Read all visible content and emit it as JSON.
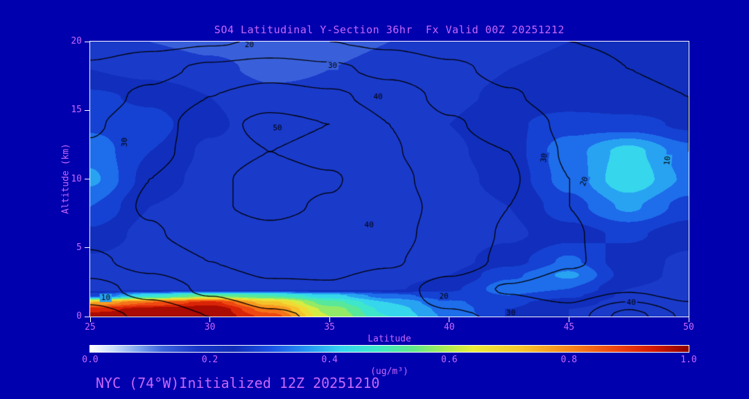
{
  "page": {
    "background": "#0000ae",
    "text_color": "#c868fa",
    "frame_color": "#ffffff",
    "contour_color": "#000000"
  },
  "chart_data": {
    "type": "heatmap",
    "title": "SO4 Latitudinal Y-Section 36hr  Fx Valid 00Z 20251212",
    "xlabel": "Latitude",
    "ylabel": "Altitude (km)",
    "footer": "NYC (74°W)Initialized 12Z 20251210",
    "x_range": [
      25,
      50
    ],
    "y_range": [
      0,
      20
    ],
    "x_ticks": [
      25,
      30,
      35,
      40,
      45,
      50
    ],
    "x_tick_labels": [
      "25",
      "30",
      "35",
      "40",
      "45",
      "50"
    ],
    "y_ticks": [
      0,
      5,
      10,
      15,
      20
    ],
    "y_tick_labels": [
      "0",
      "5",
      "10",
      "15",
      "20"
    ],
    "grid": false,
    "fill_field": {
      "name": "SO4 concentration",
      "units": "ug/m3",
      "lats": [
        25,
        27.5,
        30,
        32.5,
        35,
        37.5,
        40,
        42.5,
        45,
        47.5,
        50
      ],
      "alts": [
        20,
        18,
        16,
        14,
        12,
        10,
        8,
        6,
        4,
        3,
        2,
        1.5,
        1,
        0.5,
        0
      ],
      "values": [
        [
          0.16,
          0.15,
          0.14,
          0.13,
          0.14,
          0.15,
          0.17,
          0.19,
          0.2,
          0.21,
          0.21
        ],
        [
          0.2,
          0.18,
          0.16,
          0.14,
          0.15,
          0.16,
          0.18,
          0.2,
          0.21,
          0.21,
          0.21
        ],
        [
          0.26,
          0.24,
          0.2,
          0.16,
          0.16,
          0.17,
          0.19,
          0.21,
          0.21,
          0.2,
          0.2
        ],
        [
          0.29,
          0.27,
          0.21,
          0.17,
          0.17,
          0.18,
          0.2,
          0.24,
          0.28,
          0.27,
          0.24
        ],
        [
          0.33,
          0.25,
          0.19,
          0.17,
          0.17,
          0.17,
          0.19,
          0.23,
          0.33,
          0.42,
          0.32
        ],
        [
          0.36,
          0.23,
          0.18,
          0.16,
          0.16,
          0.16,
          0.18,
          0.22,
          0.32,
          0.44,
          0.34
        ],
        [
          0.3,
          0.2,
          0.17,
          0.16,
          0.16,
          0.16,
          0.17,
          0.2,
          0.28,
          0.36,
          0.28
        ],
        [
          0.24,
          0.18,
          0.16,
          0.16,
          0.16,
          0.16,
          0.17,
          0.19,
          0.23,
          0.26,
          0.22
        ],
        [
          0.19,
          0.17,
          0.16,
          0.16,
          0.16,
          0.17,
          0.18,
          0.23,
          0.31,
          0.22,
          0.19
        ],
        [
          0.18,
          0.16,
          0.16,
          0.16,
          0.16,
          0.17,
          0.2,
          0.29,
          0.36,
          0.23,
          0.18
        ],
        [
          0.17,
          0.16,
          0.16,
          0.16,
          0.17,
          0.19,
          0.24,
          0.33,
          0.3,
          0.2,
          0.17
        ],
        [
          0.28,
          0.45,
          0.55,
          0.5,
          0.42,
          0.32,
          0.27,
          0.3,
          0.26,
          0.19,
          0.16
        ],
        [
          0.75,
          0.85,
          0.92,
          0.72,
          0.52,
          0.4,
          0.31,
          0.26,
          0.22,
          0.18,
          0.17
        ],
        [
          0.92,
          0.98,
          1.0,
          0.82,
          0.58,
          0.43,
          0.33,
          0.25,
          0.2,
          0.17,
          0.16
        ],
        [
          1.0,
          1.0,
          1.0,
          0.88,
          0.6,
          0.45,
          0.34,
          0.25,
          0.2,
          0.17,
          0.16
        ]
      ]
    },
    "contour_field": {
      "name": "overlay contours",
      "levels": [
        10,
        20,
        30,
        40,
        50
      ],
      "lats": [
        25,
        27.5,
        30,
        32.5,
        35,
        37.5,
        40,
        42.5,
        45,
        47.5,
        50
      ],
      "alts": [
        20,
        18,
        16,
        14,
        12,
        10,
        8,
        6,
        4,
        2,
        0
      ],
      "values": [
        [
          14,
          17,
          19,
          21,
          20,
          18,
          15,
          12,
          10,
          9,
          8
        ],
        [
          22,
          27,
          32,
          35,
          32,
          27,
          22,
          17,
          13,
          10,
          9
        ],
        [
          26,
          32,
          40,
          45,
          42,
          36,
          27,
          21,
          15,
          11,
          10
        ],
        [
          29,
          35,
          46,
          53,
          50,
          40,
          31,
          26,
          18,
          13,
          10
        ],
        [
          31,
          37,
          45,
          50,
          47,
          41,
          33,
          30,
          19,
          13,
          10
        ],
        [
          33,
          40,
          48,
          54,
          51,
          43,
          35,
          31,
          20,
          14,
          11
        ],
        [
          34,
          41,
          49,
          52,
          49,
          44,
          37,
          30,
          20,
          14,
          11
        ],
        [
          33,
          39,
          45,
          48,
          46,
          43,
          36,
          29,
          21,
          15,
          11
        ],
        [
          28,
          34,
          40,
          44,
          43,
          41,
          35,
          28,
          21,
          16,
          12
        ],
        [
          16,
          24,
          32,
          38,
          39,
          34,
          26,
          19,
          15,
          19,
          14
        ],
        [
          6,
          12,
          20,
          28,
          32,
          33,
          31,
          29,
          25,
          44,
          28
        ]
      ]
    },
    "contour_labels": [
      {
        "text": "20",
        "fx": 0.266,
        "fy": 0.012,
        "rot": 0
      },
      {
        "text": "30",
        "fx": 0.405,
        "fy": 0.088,
        "rot": 0
      },
      {
        "text": "40",
        "fx": 0.481,
        "fy": 0.201,
        "rot": 0
      },
      {
        "text": "50",
        "fx": 0.313,
        "fy": 0.315,
        "rot": 0
      },
      {
        "text": "30",
        "fx": 0.058,
        "fy": 0.366,
        "rot": -90
      },
      {
        "text": "40",
        "fx": 0.466,
        "fy": 0.667,
        "rot": 0
      },
      {
        "text": "30",
        "fx": 0.759,
        "fy": 0.423,
        "rot": -80
      },
      {
        "text": "20",
        "fx": 0.826,
        "fy": 0.509,
        "rot": -70
      },
      {
        "text": "10",
        "fx": 0.965,
        "fy": 0.433,
        "rot": -85
      },
      {
        "text": "20",
        "fx": 0.591,
        "fy": 0.927,
        "rot": 0
      },
      {
        "text": "10",
        "fx": 0.026,
        "fy": 0.932,
        "rot": 0
      },
      {
        "text": "40",
        "fx": 0.904,
        "fy": 0.95,
        "rot": 0
      },
      {
        "text": "30",
        "fx": 0.703,
        "fy": 0.987,
        "rot": 0
      }
    ],
    "colorbar": {
      "label": "(ug/m³)",
      "min": 0.0,
      "max": 1.0,
      "tick_values": [
        0.0,
        0.2,
        0.4,
        0.6,
        0.8,
        1.0
      ],
      "tick_labels": [
        "0.0",
        "0.2",
        "0.4",
        "0.6",
        "0.8",
        "1.0"
      ],
      "stops": [
        {
          "v": 0.0,
          "c": "#ffffff"
        },
        {
          "v": 0.04,
          "c": "#c8dcf8"
        },
        {
          "v": 0.08,
          "c": "#7ea6ee"
        },
        {
          "v": 0.12,
          "c": "#3c64dc"
        },
        {
          "v": 0.18,
          "c": "#1736c8"
        },
        {
          "v": 0.24,
          "c": "#0f2cb8"
        },
        {
          "v": 0.3,
          "c": "#1a52e6"
        },
        {
          "v": 0.36,
          "c": "#2492f2"
        },
        {
          "v": 0.42,
          "c": "#35d4f0"
        },
        {
          "v": 0.48,
          "c": "#3fe8c8"
        },
        {
          "v": 0.54,
          "c": "#62e88a"
        },
        {
          "v": 0.6,
          "c": "#b4ec4e"
        },
        {
          "v": 0.64,
          "c": "#ecec3a"
        },
        {
          "v": 0.72,
          "c": "#f6c62c"
        },
        {
          "v": 0.8,
          "c": "#f6881c"
        },
        {
          "v": 0.88,
          "c": "#ee4410"
        },
        {
          "v": 0.94,
          "c": "#d41a04"
        },
        {
          "v": 1.0,
          "c": "#8c0000"
        }
      ]
    }
  }
}
